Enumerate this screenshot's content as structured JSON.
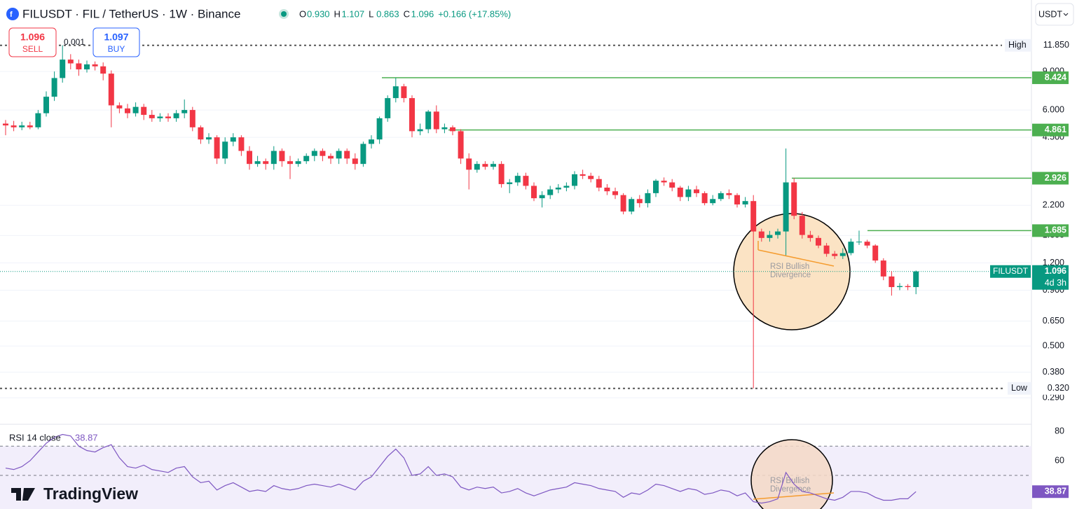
{
  "header": {
    "symbol_title": "FILUSDT · FIL / TetherUS · 1W · Binance",
    "ohlc": [
      {
        "key": "O",
        "value": "0.930"
      },
      {
        "key": "H",
        "value": "1.107"
      },
      {
        "key": "L",
        "value": "0.863"
      },
      {
        "key": "C",
        "value": "1.096"
      }
    ],
    "change": "+0.166 (+17.85%)",
    "sell": {
      "price": "1.096",
      "label": "SELL"
    },
    "buy": {
      "price": "1.097",
      "label": "BUY"
    },
    "spread": "0.001",
    "currency": "USDT"
  },
  "chart_data": [
    {
      "type": "candlestick",
      "log_scale": true,
      "grid": true,
      "up_color": "#089981",
      "down_color": "#f23645",
      "open": [
        5.2,
        5.1,
        5.0,
        5.1,
        5.0,
        5.8,
        6.9,
        8.4,
        10.2,
        9.8,
        9.2,
        9.7,
        9.5,
        8.8,
        6.3,
        6.1,
        5.8,
        6.2,
        5.7,
        5.5,
        5.6,
        5.5,
        5.8,
        6.0,
        5.0,
        4.4,
        4.5,
        3.6,
        4.3,
        4.5,
        3.9,
        3.4,
        3.5,
        3.4,
        3.9,
        3.5,
        3.4,
        3.5,
        3.7,
        3.9,
        3.7,
        3.6,
        3.9,
        3.6,
        3.4,
        4.2,
        4.4,
        5.5,
        6.8,
        7.7,
        6.8,
        4.8,
        4.9,
        5.9,
        4.9,
        5.0,
        4.8,
        3.6,
        3.2,
        3.4,
        3.3,
        3.4,
        2.75,
        2.8,
        3.0,
        2.7,
        2.37,
        2.45,
        2.6,
        2.65,
        2.7,
        3.05,
        3.0,
        2.9,
        2.65,
        2.55,
        2.45,
        2.06,
        2.35,
        2.25,
        2.5,
        2.85,
        2.8,
        2.65,
        2.4,
        2.6,
        2.5,
        2.25,
        2.35,
        2.5,
        2.45,
        2.22,
        2.3,
        1.67,
        1.56,
        1.61,
        1.67,
        2.8,
        1.97,
        1.61,
        1.56,
        1.44,
        1.32,
        1.29,
        1.33,
        1.5,
        1.5,
        1.44,
        1.23,
        1.04,
        0.93,
        0.94,
        0.93
      ],
      "high": [
        5.4,
        5.35,
        5.3,
        5.3,
        6.0,
        7.3,
        9.0,
        11.85,
        10.8,
        10.2,
        10.1,
        10.0,
        9.9,
        9.1,
        6.5,
        6.4,
        6.5,
        6.4,
        6.0,
        5.8,
        5.8,
        6.0,
        6.7,
        6.2,
        5.1,
        4.7,
        4.6,
        4.5,
        4.7,
        4.6,
        4.1,
        3.7,
        3.6,
        4.1,
        4.0,
        3.7,
        3.6,
        3.8,
        4.0,
        4.0,
        3.8,
        4.0,
        4.0,
        3.8,
        4.3,
        4.6,
        5.6,
        7.0,
        8.424,
        7.9,
        7.0,
        5.2,
        6.0,
        6.3,
        5.2,
        5.1,
        4.9,
        3.8,
        3.5,
        3.5,
        3.5,
        3.5,
        2.9,
        3.1,
        3.1,
        2.8,
        2.55,
        2.7,
        2.75,
        2.8,
        3.15,
        3.2,
        3.1,
        3.0,
        2.75,
        2.65,
        2.5,
        2.4,
        2.45,
        2.6,
        2.9,
        2.95,
        2.9,
        2.7,
        2.7,
        2.7,
        2.55,
        2.45,
        2.55,
        2.6,
        2.5,
        2.4,
        2.45,
        1.72,
        1.68,
        1.72,
        4.0,
        2.926,
        2.05,
        1.68,
        1.6,
        1.48,
        1.36,
        1.4,
        1.55,
        1.685,
        1.53,
        1.46,
        1.26,
        1.1,
        0.97,
        0.96,
        1.107
      ],
      "low": [
        4.6,
        4.8,
        4.85,
        4.9,
        4.9,
        5.6,
        6.6,
        8.0,
        9.2,
        8.6,
        8.9,
        9.1,
        8.2,
        5.0,
        5.8,
        5.5,
        5.6,
        5.4,
        5.3,
        5.3,
        5.3,
        5.3,
        5.5,
        4.8,
        4.2,
        4.2,
        3.4,
        3.4,
        4.1,
        3.7,
        3.2,
        3.3,
        3.2,
        3.2,
        3.3,
        2.9,
        3.3,
        3.4,
        3.5,
        3.5,
        3.4,
        3.4,
        3.4,
        3.2,
        3.3,
        4.0,
        4.2,
        5.3,
        6.5,
        6.5,
        4.5,
        4.6,
        4.7,
        4.7,
        4.7,
        4.6,
        3.4,
        2.6,
        3.1,
        3.2,
        3.2,
        2.65,
        2.5,
        2.7,
        2.6,
        2.3,
        2.15,
        2.35,
        2.5,
        2.55,
        2.6,
        2.9,
        2.8,
        2.55,
        2.45,
        2.35,
        2.0,
        2.0,
        2.15,
        2.15,
        2.4,
        2.7,
        2.55,
        2.3,
        2.3,
        2.4,
        2.2,
        2.2,
        2.3,
        2.35,
        2.15,
        2.15,
        0.32,
        1.5,
        1.5,
        1.55,
        1.3,
        1.9,
        1.55,
        1.5,
        1.4,
        1.28,
        1.25,
        1.25,
        1.3,
        1.45,
        1.4,
        1.2,
        1.0,
        0.85,
        0.9,
        0.9,
        0.863
      ],
      "close": [
        5.1,
        5.0,
        5.1,
        5.0,
        5.8,
        6.9,
        8.4,
        10.2,
        9.8,
        9.2,
        9.7,
        9.5,
        8.8,
        6.3,
        6.1,
        5.8,
        6.2,
        5.7,
        5.5,
        5.6,
        5.5,
        5.8,
        6.0,
        5.0,
        4.4,
        4.5,
        3.6,
        4.3,
        4.5,
        3.9,
        3.4,
        3.5,
        3.4,
        3.9,
        3.5,
        3.4,
        3.5,
        3.7,
        3.9,
        3.7,
        3.6,
        3.9,
        3.6,
        3.4,
        4.2,
        4.4,
        5.5,
        6.8,
        7.7,
        6.8,
        4.8,
        4.9,
        5.9,
        4.9,
        5.0,
        4.8,
        3.6,
        3.2,
        3.4,
        3.3,
        3.4,
        2.75,
        2.8,
        3.0,
        2.7,
        2.37,
        2.45,
        2.6,
        2.65,
        2.7,
        3.05,
        3.0,
        2.9,
        2.65,
        2.55,
        2.45,
        2.06,
        2.35,
        2.25,
        2.5,
        2.85,
        2.8,
        2.65,
        2.4,
        2.6,
        2.5,
        2.25,
        2.35,
        2.5,
        2.45,
        2.22,
        2.3,
        1.67,
        1.56,
        1.61,
        1.67,
        2.8,
        1.97,
        1.61,
        1.56,
        1.44,
        1.32,
        1.29,
        1.33,
        1.5,
        1.5,
        1.44,
        1.23,
        1.04,
        0.93,
        0.94,
        0.93,
        1.096
      ],
      "ylim": [
        0.221,
        19.1
      ],
      "yticks": [
        {
          "value": 0.29,
          "label": "0.290"
        },
        {
          "value": 0.38,
          "label": "0.380"
        },
        {
          "value": 0.5,
          "label": "0.500"
        },
        {
          "value": 0.65,
          "label": "0.650"
        },
        {
          "value": 0.9,
          "label": "0.900"
        },
        {
          "value": 1.2,
          "label": "1.200"
        },
        {
          "value": 1.6,
          "label": "1.600"
        },
        {
          "value": 2.2,
          "label": "2.200"
        },
        {
          "value": 4.5,
          "label": "4.500"
        },
        {
          "value": 6,
          "label": "6.000"
        },
        {
          "value": 9,
          "label": "9.000"
        }
      ],
      "high_marker": {
        "label": "High",
        "value": 11.85,
        "value_label": "11.850"
      },
      "low_marker": {
        "label": "Low",
        "value": 0.32,
        "value_label": "0.320"
      },
      "levels": [
        8.424,
        4.861,
        2.926,
        1.685
      ],
      "level_color": "#4caf50",
      "last_price": {
        "symbol": "FILUSDT",
        "value": 1.096,
        "label": "1.096",
        "countdown": "4d 3h"
      },
      "annotation": [
        "RSI Bullish",
        "Divergence"
      ]
    },
    {
      "type": "line",
      "title": "RSI 14 close",
      "color": "#7e57c2",
      "values": [
        55,
        54,
        56,
        60,
        66,
        72,
        76,
        78,
        77,
        70,
        67,
        66,
        69,
        71,
        62,
        56,
        55,
        57,
        54,
        53,
        52,
        55,
        56,
        49,
        45,
        46,
        40,
        43,
        45,
        42,
        39,
        40,
        39,
        43,
        41,
        40,
        41,
        43,
        44,
        43,
        42,
        44,
        42,
        40,
        46,
        49,
        56,
        63,
        68,
        62,
        50,
        51,
        56,
        50,
        51,
        49,
        42,
        40,
        42,
        41,
        42,
        38,
        39,
        41,
        38,
        36,
        38,
        40,
        41,
        42,
        45,
        44,
        43,
        41,
        40,
        39,
        35,
        38,
        37,
        40,
        44,
        43,
        41,
        39,
        41,
        40,
        37,
        38,
        40,
        39,
        36,
        38,
        32,
        31,
        32,
        34,
        52,
        44,
        39,
        38,
        36,
        34,
        33,
        35,
        39,
        39,
        38,
        35,
        33,
        33,
        34,
        34,
        38.87
      ],
      "ylim": [
        27,
        84
      ],
      "yticks": [
        60,
        80
      ],
      "bands": [
        50,
        70
      ],
      "annotation": [
        "RSI Bullish",
        "Divergence"
      ]
    }
  ],
  "branding": "TradingView"
}
